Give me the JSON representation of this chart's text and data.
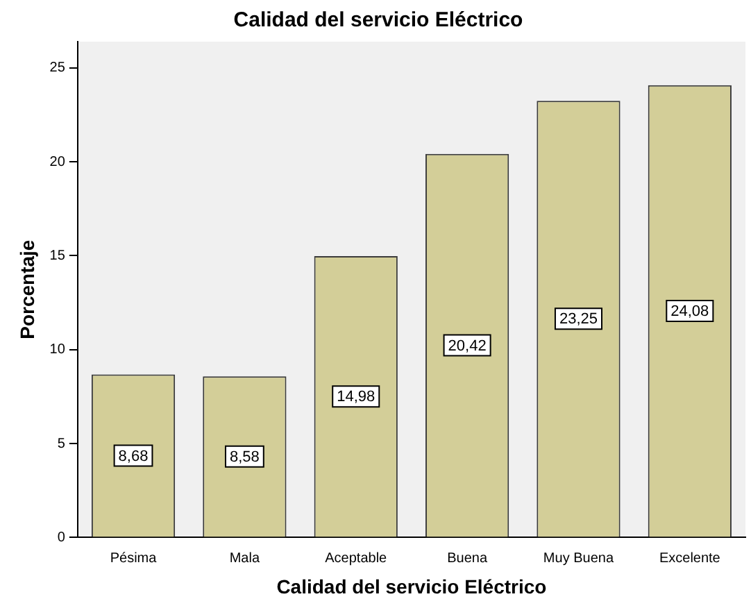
{
  "chart_data": {
    "type": "bar",
    "title": "Calidad del servicio Eléctrico",
    "xlabel": "Calidad del servicio Eléctrico",
    "ylabel": "Porcentaje",
    "categories": [
      "Pésima",
      "Mala",
      "Aceptable",
      "Buena",
      "Muy Buena",
      "Excelente"
    ],
    "values": [
      8.68,
      8.58,
      14.98,
      20.42,
      23.25,
      24.08
    ],
    "value_labels": [
      "8,68",
      "8,58",
      "14,98",
      "20,42",
      "23,25",
      "24,08"
    ],
    "color": "#d3ce98",
    "ylim": [
      0,
      26.4
    ],
    "yticks": [
      0,
      5,
      10,
      15,
      20,
      25
    ],
    "grid": false,
    "legend": false
  }
}
